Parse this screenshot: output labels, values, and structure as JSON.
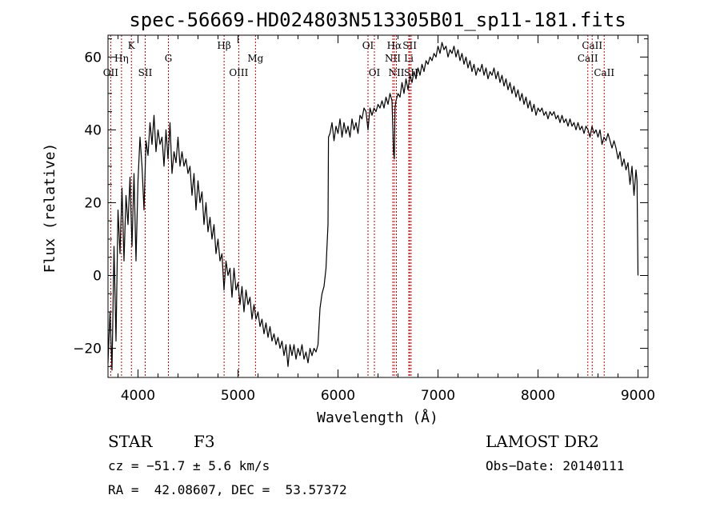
{
  "chart_data": {
    "type": "line",
    "title": "spec-56669-HD024803N513305B01_sp11-181.fits",
    "xlabel": "Wavelength (Å)",
    "ylabel": "Flux (relative)",
    "xlim": [
      3700,
      9100
    ],
    "ylim": [
      -28,
      66
    ],
    "xticks": [
      4000,
      5000,
      6000,
      7000,
      8000,
      9000
    ],
    "yticks": [
      -20,
      0,
      20,
      40,
      60
    ],
    "grid": false,
    "series": [
      {
        "color": "#000000",
        "points": [
          [
            3700,
            -24
          ],
          [
            3720,
            -10
          ],
          [
            3740,
            -26
          ],
          [
            3760,
            8
          ],
          [
            3780,
            -18
          ],
          [
            3800,
            18
          ],
          [
            3820,
            6
          ],
          [
            3840,
            24
          ],
          [
            3860,
            4
          ],
          [
            3880,
            22
          ],
          [
            3900,
            14
          ],
          [
            3920,
            27
          ],
          [
            3940,
            8
          ],
          [
            3960,
            28
          ],
          [
            3980,
            4
          ],
          [
            4000,
            26
          ],
          [
            4020,
            38
          ],
          [
            4040,
            30
          ],
          [
            4060,
            18
          ],
          [
            4080,
            37
          ],
          [
            4100,
            33
          ],
          [
            4120,
            42
          ],
          [
            4140,
            36
          ],
          [
            4160,
            44
          ],
          [
            4180,
            34
          ],
          [
            4200,
            40
          ],
          [
            4220,
            36
          ],
          [
            4240,
            38
          ],
          [
            4260,
            30
          ],
          [
            4280,
            40
          ],
          [
            4300,
            32
          ],
          [
            4320,
            42
          ],
          [
            4340,
            28
          ],
          [
            4360,
            34
          ],
          [
            4380,
            31
          ],
          [
            4400,
            38
          ],
          [
            4420,
            30
          ],
          [
            4440,
            34
          ],
          [
            4460,
            30
          ],
          [
            4480,
            32
          ],
          [
            4500,
            28
          ],
          [
            4520,
            30
          ],
          [
            4540,
            22
          ],
          [
            4560,
            28
          ],
          [
            4580,
            18
          ],
          [
            4600,
            26
          ],
          [
            4620,
            20
          ],
          [
            4640,
            23
          ],
          [
            4660,
            14
          ],
          [
            4680,
            20
          ],
          [
            4700,
            12
          ],
          [
            4720,
            16
          ],
          [
            4740,
            10
          ],
          [
            4760,
            14
          ],
          [
            4780,
            6
          ],
          [
            4800,
            10
          ],
          [
            4820,
            4
          ],
          [
            4840,
            6
          ],
          [
            4860,
            -4
          ],
          [
            4880,
            4
          ],
          [
            4900,
            0
          ],
          [
            4920,
            2
          ],
          [
            4940,
            -6
          ],
          [
            4960,
            2
          ],
          [
            4980,
            -4
          ],
          [
            5000,
            -2
          ],
          [
            5020,
            -8
          ],
          [
            5040,
            -3
          ],
          [
            5060,
            -10
          ],
          [
            5080,
            -4
          ],
          [
            5100,
            -8
          ],
          [
            5120,
            -6
          ],
          [
            5140,
            -12
          ],
          [
            5160,
            -8
          ],
          [
            5180,
            -12
          ],
          [
            5200,
            -10
          ],
          [
            5220,
            -14
          ],
          [
            5240,
            -12
          ],
          [
            5260,
            -16
          ],
          [
            5280,
            -13
          ],
          [
            5300,
            -17
          ],
          [
            5320,
            -14
          ],
          [
            5340,
            -18
          ],
          [
            5360,
            -16
          ],
          [
            5380,
            -19
          ],
          [
            5400,
            -17
          ],
          [
            5420,
            -20
          ],
          [
            5440,
            -18
          ],
          [
            5460,
            -22
          ],
          [
            5480,
            -19
          ],
          [
            5500,
            -25
          ],
          [
            5520,
            -19
          ],
          [
            5540,
            -22
          ],
          [
            5560,
            -19
          ],
          [
            5580,
            -23
          ],
          [
            5600,
            -20
          ],
          [
            5620,
            -22
          ],
          [
            5640,
            -19
          ],
          [
            5660,
            -23
          ],
          [
            5680,
            -21
          ],
          [
            5700,
            -24
          ],
          [
            5720,
            -20
          ],
          [
            5740,
            -22
          ],
          [
            5760,
            -20
          ],
          [
            5780,
            -21
          ],
          [
            5800,
            -19
          ],
          [
            5820,
            -9
          ],
          [
            5840,
            -5
          ],
          [
            5860,
            -3
          ],
          [
            5880,
            2
          ],
          [
            5900,
            14
          ],
          [
            5905,
            38
          ],
          [
            5920,
            39
          ],
          [
            5940,
            42
          ],
          [
            5960,
            37
          ],
          [
            5980,
            41
          ],
          [
            6000,
            39
          ],
          [
            6020,
            43
          ],
          [
            6040,
            38
          ],
          [
            6060,
            42
          ],
          [
            6080,
            39
          ],
          [
            6100,
            41
          ],
          [
            6120,
            38
          ],
          [
            6140,
            43
          ],
          [
            6160,
            40
          ],
          [
            6180,
            42
          ],
          [
            6200,
            39
          ],
          [
            6220,
            44
          ],
          [
            6240,
            43
          ],
          [
            6260,
            46
          ],
          [
            6280,
            45
          ],
          [
            6300,
            40
          ],
          [
            6320,
            46
          ],
          [
            6340,
            44
          ],
          [
            6360,
            46
          ],
          [
            6380,
            45
          ],
          [
            6400,
            47
          ],
          [
            6420,
            46
          ],
          [
            6440,
            48
          ],
          [
            6460,
            46
          ],
          [
            6480,
            49
          ],
          [
            6500,
            47
          ],
          [
            6520,
            50
          ],
          [
            6540,
            48
          ],
          [
            6555,
            34
          ],
          [
            6563,
            32
          ],
          [
            6570,
            46
          ],
          [
            6580,
            48
          ],
          [
            6600,
            50
          ],
          [
            6620,
            49
          ],
          [
            6640,
            53
          ],
          [
            6660,
            50
          ],
          [
            6680,
            54
          ],
          [
            6700,
            51
          ],
          [
            6720,
            55
          ],
          [
            6740,
            53
          ],
          [
            6760,
            56
          ],
          [
            6780,
            54
          ],
          [
            6800,
            57
          ],
          [
            6820,
            55
          ],
          [
            6840,
            58
          ],
          [
            6860,
            56
          ],
          [
            6880,
            59
          ],
          [
            6900,
            58
          ],
          [
            6920,
            60
          ],
          [
            6940,
            59
          ],
          [
            6960,
            61
          ],
          [
            6980,
            60
          ],
          [
            7000,
            63
          ],
          [
            7020,
            61
          ],
          [
            7040,
            64
          ],
          [
            7060,
            62
          ],
          [
            7080,
            63
          ],
          [
            7100,
            60
          ],
          [
            7120,
            62
          ],
          [
            7140,
            61
          ],
          [
            7160,
            63
          ],
          [
            7180,
            60
          ],
          [
            7200,
            62
          ],
          [
            7220,
            59
          ],
          [
            7240,
            61
          ],
          [
            7260,
            58
          ],
          [
            7280,
            60
          ],
          [
            7300,
            57
          ],
          [
            7320,
            59
          ],
          [
            7340,
            56
          ],
          [
            7360,
            58
          ],
          [
            7380,
            55
          ],
          [
            7400,
            57
          ],
          [
            7420,
            56
          ],
          [
            7440,
            58
          ],
          [
            7460,
            55
          ],
          [
            7480,
            57
          ],
          [
            7500,
            54
          ],
          [
            7520,
            56
          ],
          [
            7540,
            55
          ],
          [
            7560,
            57
          ],
          [
            7580,
            54
          ],
          [
            7600,
            56
          ],
          [
            7620,
            53
          ],
          [
            7640,
            55
          ],
          [
            7660,
            52
          ],
          [
            7680,
            54
          ],
          [
            7700,
            51
          ],
          [
            7720,
            53
          ],
          [
            7740,
            50
          ],
          [
            7760,
            52
          ],
          [
            7780,
            49
          ],
          [
            7800,
            51
          ],
          [
            7820,
            48
          ],
          [
            7840,
            50
          ],
          [
            7860,
            47
          ],
          [
            7880,
            49
          ],
          [
            7900,
            46
          ],
          [
            7920,
            48
          ],
          [
            7940,
            45
          ],
          [
            7960,
            47
          ],
          [
            7980,
            44
          ],
          [
            8000,
            46
          ],
          [
            8020,
            45
          ],
          [
            8040,
            46
          ],
          [
            8060,
            44
          ],
          [
            8080,
            45
          ],
          [
            8100,
            43
          ],
          [
            8120,
            45
          ],
          [
            8140,
            44
          ],
          [
            8160,
            45
          ],
          [
            8180,
            43
          ],
          [
            8200,
            44
          ],
          [
            8220,
            42
          ],
          [
            8240,
            44
          ],
          [
            8260,
            42
          ],
          [
            8280,
            43
          ],
          [
            8300,
            41
          ],
          [
            8320,
            43
          ],
          [
            8340,
            41
          ],
          [
            8360,
            42
          ],
          [
            8380,
            40
          ],
          [
            8400,
            42
          ],
          [
            8420,
            40
          ],
          [
            8440,
            41
          ],
          [
            8460,
            39
          ],
          [
            8480,
            41
          ],
          [
            8500,
            40
          ],
          [
            8520,
            38
          ],
          [
            8540,
            41
          ],
          [
            8560,
            39
          ],
          [
            8580,
            40
          ],
          [
            8600,
            38
          ],
          [
            8620,
            40
          ],
          [
            8640,
            36
          ],
          [
            8660,
            38
          ],
          [
            8680,
            37
          ],
          [
            8700,
            39
          ],
          [
            8720,
            37
          ],
          [
            8740,
            35
          ],
          [
            8760,
            37
          ],
          [
            8780,
            35
          ],
          [
            8800,
            32
          ],
          [
            8820,
            34
          ],
          [
            8840,
            30
          ],
          [
            8860,
            32
          ],
          [
            8880,
            29
          ],
          [
            8900,
            31
          ],
          [
            8920,
            25
          ],
          [
            8940,
            30
          ],
          [
            8960,
            22
          ],
          [
            8980,
            29
          ],
          [
            8990,
            26
          ],
          [
            9000,
            0
          ]
        ]
      }
    ],
    "emission_lines": [
      {
        "label": "OII",
        "wavelength": 3727,
        "row": 3
      },
      {
        "label": "Hη",
        "wavelength": 3835,
        "row": 2
      },
      {
        "label": "K",
        "wavelength": 3934,
        "row": 1
      },
      {
        "label": "SII",
        "wavelength": 4072,
        "row": 3
      },
      {
        "label": "G",
        "wavelength": 4304,
        "row": 2
      },
      {
        "label": "Hβ",
        "wavelength": 4861,
        "row": 1
      },
      {
        "label": "OIII",
        "wavelength": 5007,
        "row": 3
      },
      {
        "label": "Mg",
        "wavelength": 5175,
        "row": 2
      },
      {
        "label": "OI",
        "wavelength": 6300,
        "row": 1
      },
      {
        "label": "OI",
        "wavelength": 6364,
        "row": 3
      },
      {
        "label": "NII",
        "wavelength": 6548,
        "row": 2
      },
      {
        "label": "Hα",
        "wavelength": 6563,
        "row": 1
      },
      {
        "label": "NII",
        "wavelength": 6584,
        "row": 3
      },
      {
        "label": "Li",
        "wavelength": 6708,
        "row": 2
      },
      {
        "label": "SII",
        "wavelength": 6717,
        "row": 1
      },
      {
        "label": "SII",
        "wavelength": 6731,
        "row": 3
      },
      {
        "label": "CaII",
        "wavelength": 8498,
        "row": 2
      },
      {
        "label": "CaII",
        "wavelength": 8542,
        "row": 1
      },
      {
        "label": "CaII",
        "wavelength": 8662,
        "row": 3
      }
    ],
    "line_marker_color": "#cc0000"
  },
  "info": {
    "class": "STAR",
    "subclass": "F3",
    "cz": "cz = −51.7 ± 5.6 km/s",
    "coords": "RA =  42.08607, DEC =  53.57372",
    "survey": "LAMOST DR2",
    "obs_date": "Obs−Date: 20140111"
  }
}
